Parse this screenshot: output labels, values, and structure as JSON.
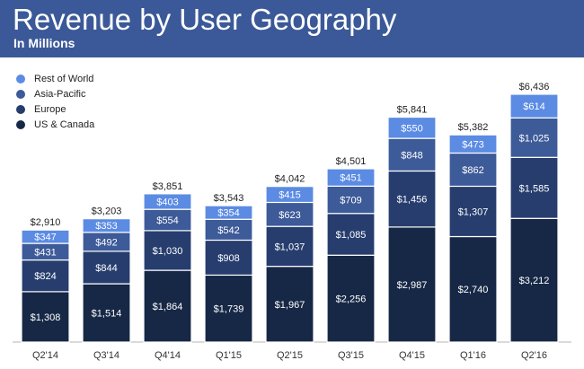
{
  "header": {
    "title": "Revenue by User Geography",
    "subtitle": "In Millions"
  },
  "colors": {
    "header_bg": "#3b5998",
    "US & Canada": "#172846",
    "Europe": "#263d6e",
    "Asia-Pacific": "#3d5a99",
    "Rest of World": "#5b8be3"
  },
  "chart_data": {
    "type": "bar",
    "stacked": true,
    "title": "Revenue by User Geography",
    "subtitle": "In Millions",
    "categories": [
      "Q2'14",
      "Q3'14",
      "Q4'14",
      "Q1'15",
      "Q2'15",
      "Q3'15",
      "Q4'15",
      "Q1'16",
      "Q2'16"
    ],
    "series": [
      {
        "name": "US & Canada",
        "values": [
          1308,
          1514,
          1864,
          1739,
          1967,
          2256,
          2987,
          2740,
          3212
        ],
        "labels": [
          "$1,308",
          "$1,514",
          "$1,864",
          "$1,739",
          "$1,967",
          "$2,256",
          "$2,987",
          "$2,740",
          "$3,212"
        ]
      },
      {
        "name": "Europe",
        "values": [
          824,
          844,
          1030,
          908,
          1037,
          1085,
          1456,
          1307,
          1585
        ],
        "labels": [
          "$824",
          "$844",
          "$1,030",
          "$908",
          "$1,037",
          "$1,085",
          "$1,456",
          "$1,307",
          "$1,585"
        ]
      },
      {
        "name": "Asia-Pacific",
        "values": [
          431,
          492,
          554,
          542,
          623,
          709,
          848,
          862,
          1025
        ],
        "labels": [
          "$431",
          "$492",
          "$554",
          "$542",
          "$623",
          "$709",
          "$848",
          "$862",
          "$1,025"
        ]
      },
      {
        "name": "Rest of World",
        "values": [
          347,
          353,
          403,
          354,
          415,
          451,
          550,
          473,
          614
        ],
        "labels": [
          "$347",
          "$353",
          "$403",
          "$354",
          "$415",
          "$451",
          "$550",
          "$473",
          "$614"
        ]
      }
    ],
    "totals": [
      2910,
      3203,
      3851,
      3543,
      4042,
      4501,
      5841,
      5382,
      6436
    ],
    "total_labels": [
      "$2,910",
      "$3,203",
      "$3,851",
      "$3,543",
      "$4,042",
      "$4,501",
      "$5,841",
      "$5,382",
      "$6,436"
    ],
    "legend": {
      "placement": "top-left",
      "entries": [
        "Rest of World",
        "Asia-Pacific",
        "Europe",
        "US & Canada"
      ]
    },
    "grid": false,
    "ylim": [
      0,
      6436
    ]
  }
}
